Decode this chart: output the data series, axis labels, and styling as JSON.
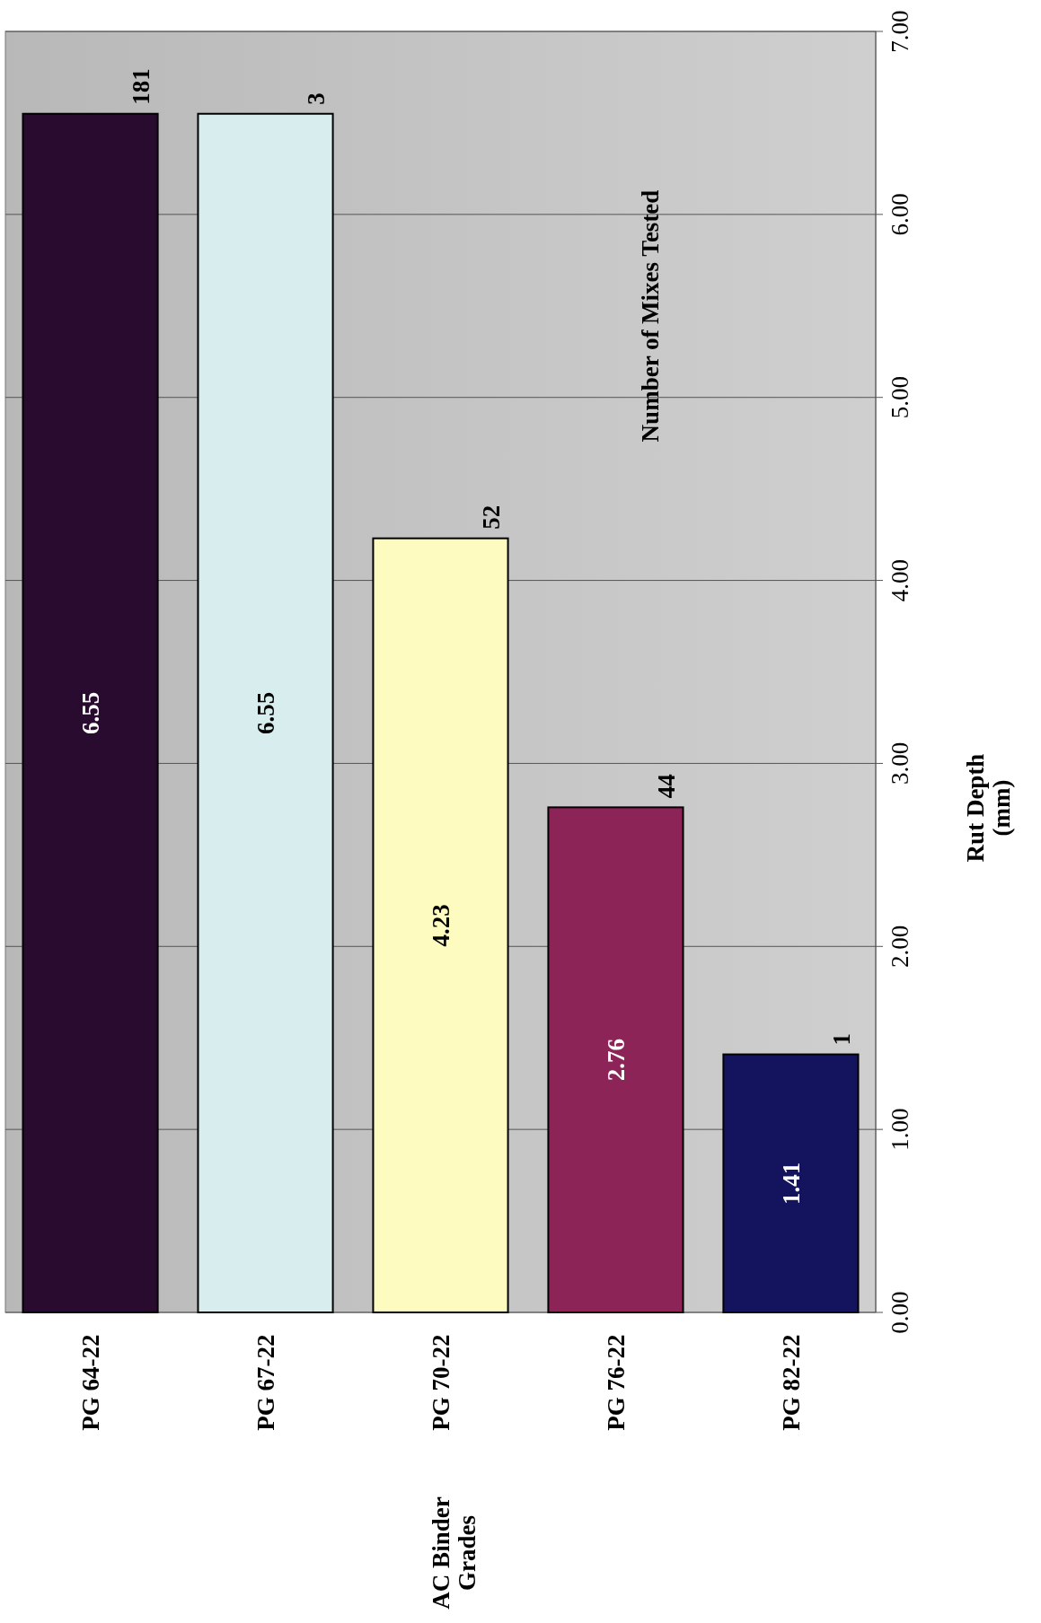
{
  "chart_data": {
    "type": "bar",
    "ylabel": "Rut Depth (mm)",
    "categories": [
      "PG 64-22",
      "PG 67-22",
      "PG 70-22",
      "PG 76-22",
      "PG 82-22"
    ],
    "values": [
      6.55,
      6.55,
      4.23,
      2.76,
      1.41
    ],
    "colors": [
      "#2a0b30",
      "#d8eeee",
      "#fdfbc0",
      "#8c2458",
      "#14145e"
    ],
    "data_labels": true,
    "ylim": [
      0,
      7
    ],
    "yticks": [
      {
        "value": 0,
        "label": "0.00"
      },
      {
        "value": 1,
        "label": "1.00"
      },
      {
        "value": 2,
        "label": "2.00"
      },
      {
        "value": 3,
        "label": "3.00"
      },
      {
        "value": 4,
        "label": "4.00"
      },
      {
        "value": 5,
        "label": "5.00"
      },
      {
        "value": 6,
        "label": "6.00"
      },
      {
        "value": 7,
        "label": "7.00"
      }
    ],
    "grid": "y",
    "annotations": [
      {
        "text": "181",
        "x": "PG 64-22",
        "y": 6.55
      },
      {
        "text": "3",
        "x": "PG 67-22",
        "y": 6.55
      },
      {
        "text": "52",
        "x": "PG 70-22",
        "y": 4.23
      },
      {
        "text": "44",
        "x": "PG 76-22",
        "y": 2.76
      },
      {
        "text": "1",
        "x": "PG 82-22",
        "y": 1.41
      },
      "Number of Mixes Tested",
      "AC Binder Grades"
    ]
  }
}
